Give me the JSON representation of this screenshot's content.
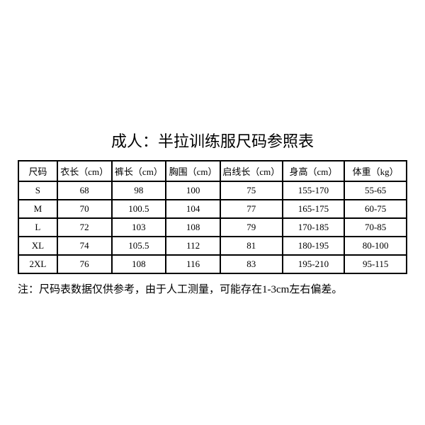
{
  "title": "成人：半拉训练服尺码参照表",
  "table": {
    "columns": [
      "尺码",
      "衣长（cm）",
      "裤长（cm）",
      "胸围（cm）",
      "启线长（cm）",
      "身高（cm）",
      "体重（kg）"
    ],
    "rows": [
      [
        "S",
        "68",
        "98",
        "100",
        "75",
        "155-170",
        "55-65"
      ],
      [
        "M",
        "70",
        "100.5",
        "104",
        "77",
        "165-175",
        "60-75"
      ],
      [
        "L",
        "72",
        "103",
        "108",
        "79",
        "170-185",
        "70-85"
      ],
      [
        "XL",
        "74",
        "105.5",
        "112",
        "81",
        "180-195",
        "80-100"
      ],
      [
        "2XL",
        "76",
        "108",
        "116",
        "83",
        "195-210",
        "95-115"
      ]
    ],
    "column_classes": [
      "col-size",
      "col-yichang",
      "col-kuchang",
      "col-xiongwei",
      "col-qixian",
      "col-shengao",
      "col-tizhong"
    ]
  },
  "note": "注：尺码表数据仅供参考，由于人工测量，可能存在1-3cm左右偏差。",
  "colors": {
    "background": "#ffffff",
    "text": "#000000",
    "border": "#000000"
  }
}
